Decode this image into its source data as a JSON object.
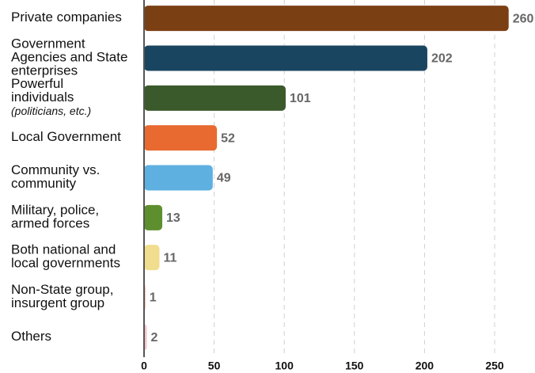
{
  "chart_data": {
    "type": "bar",
    "orientation": "horizontal",
    "categories": [
      "Private companies",
      "Government\nAgencies and State\nenterprises",
      "Powerful\nindividuals\n(politicians, etc.)",
      "Local Government",
      "Community vs.\ncommunity",
      "Military, police,\narmed forces",
      "Both national and\nlocal governments",
      "Non-State group,\ninsurgent group",
      "Others"
    ],
    "values": [
      260,
      202,
      101,
      52,
      49,
      13,
      11,
      1,
      2
    ],
    "colors": [
      "#7b3f14",
      "#1a4560",
      "#3b5a2b",
      "#e86a30",
      "#5eb0e0",
      "#5e8f2f",
      "#f1dd8e",
      "#f2b8a6",
      "#f5c4cc"
    ],
    "xlim": [
      0,
      275
    ],
    "xticks": [
      0,
      50,
      100,
      150,
      200,
      250
    ],
    "grid": true
  }
}
